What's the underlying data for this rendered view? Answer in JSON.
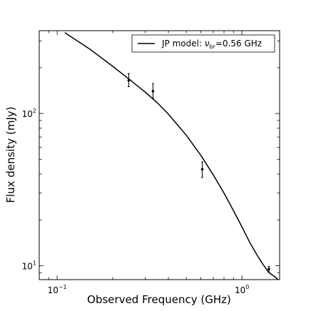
{
  "chart_data": {
    "type": "scatter",
    "title": "",
    "xlabel": "Observed Frequency (GHz)",
    "ylabel": "Flux density (mJy)",
    "xscale": "log",
    "yscale": "log",
    "xlim": [
      0.08,
      1.6
    ],
    "ylim": [
      8.1,
      350
    ],
    "xticks": [
      {
        "value": 0.1,
        "base": "10",
        "exp": "−1"
      },
      {
        "value": 1,
        "base": "10",
        "exp": "0"
      }
    ],
    "yticks": [
      {
        "value": 10,
        "base": "10",
        "exp": "1"
      },
      {
        "value": 100,
        "base": "10",
        "exp": "2"
      }
    ],
    "grid": false,
    "legend": {
      "position": "top-right",
      "entries": [
        {
          "prefix": "JP model: ",
          "symbol": "ν",
          "subscript": "br",
          "suffix": "=0.56 GHz"
        }
      ]
    },
    "series": [
      {
        "kind": "points",
        "points": [
          {
            "x": 0.244,
            "y": 165,
            "ylow": 150,
            "yhigh": 183
          },
          {
            "x": 0.33,
            "y": 140,
            "ylow": 126,
            "yhigh": 157
          },
          {
            "x": 0.61,
            "y": 43,
            "ylow": 38,
            "yhigh": 48
          },
          {
            "x": 1.4,
            "y": 9.5,
            "ylow": 9.1,
            "yhigh": 9.9
          }
        ],
        "color": "#000000"
      },
      {
        "kind": "model-line",
        "x": [
          0.11,
          0.15,
          0.2,
          0.25,
          0.3,
          0.35,
          0.4,
          0.5,
          0.6,
          0.7,
          0.8,
          0.9,
          1.0,
          1.1,
          1.2,
          1.3,
          1.4,
          1.5,
          1.57
        ],
        "y": [
          340,
          265,
          204,
          165,
          138,
          117,
          99,
          72,
          53,
          39.5,
          30,
          23,
          18,
          14.3,
          11.9,
          10.2,
          9.0,
          8.5,
          8.1
        ],
        "color": "#000000"
      }
    ]
  }
}
